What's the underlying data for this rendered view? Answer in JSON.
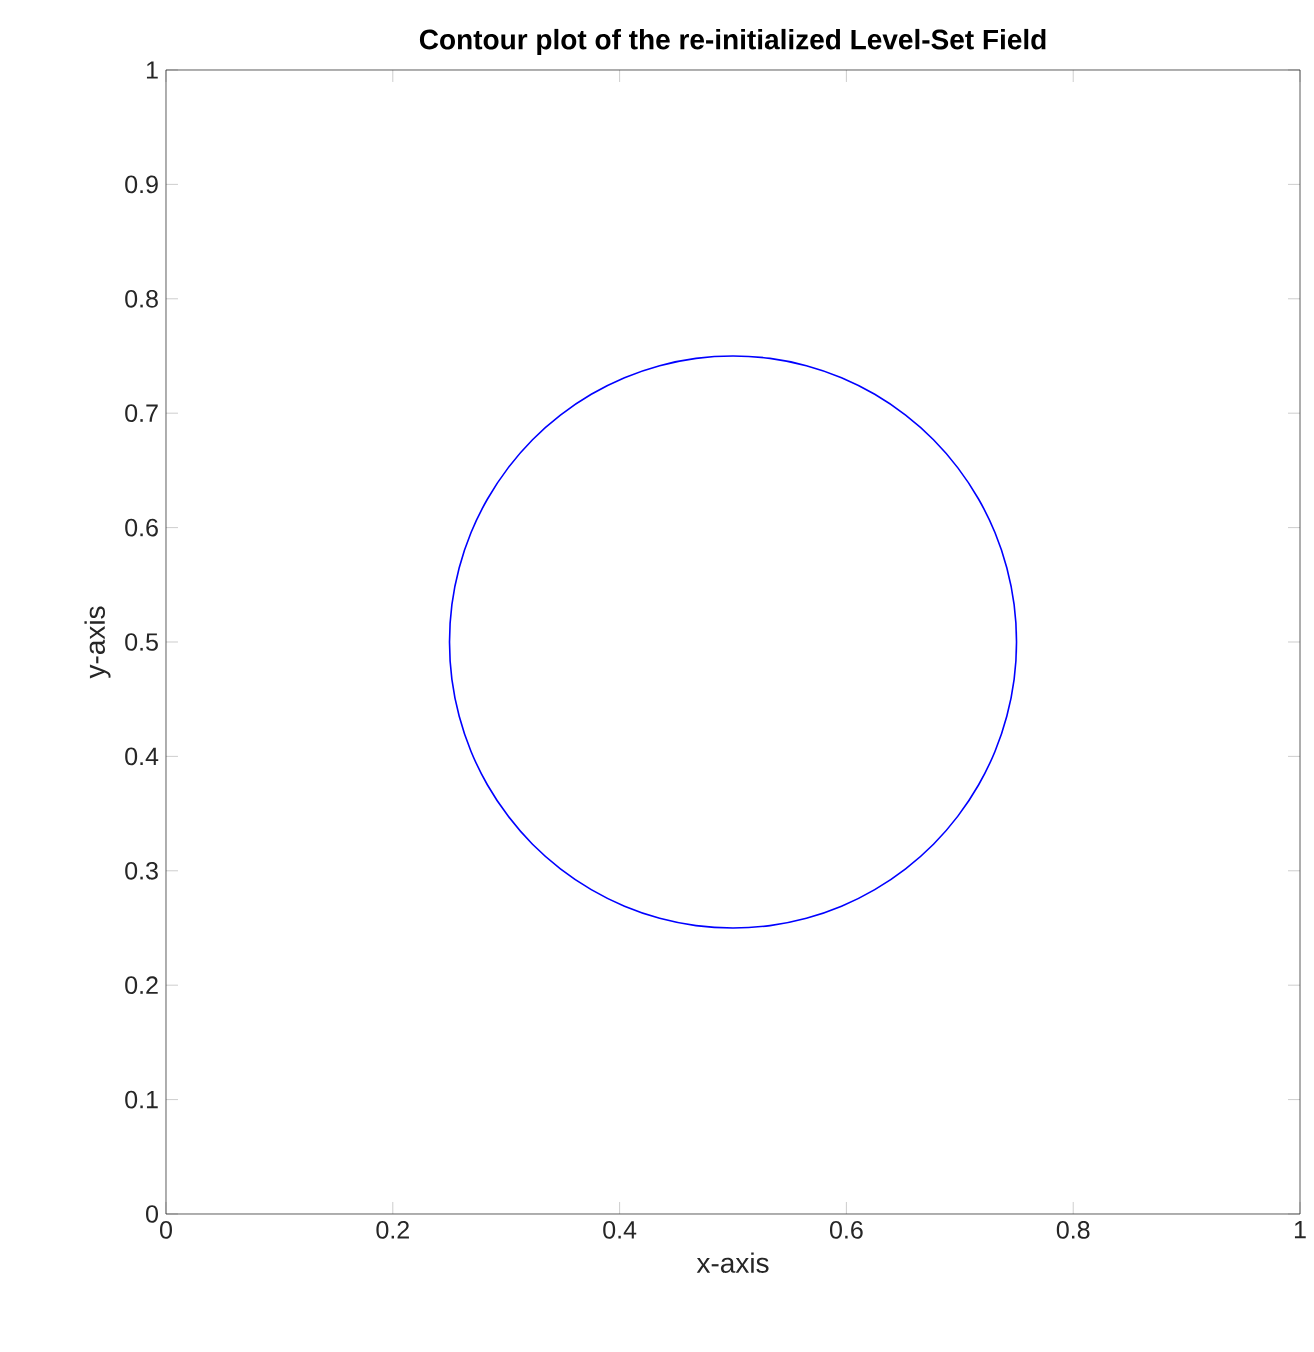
{
  "chart_data": {
    "type": "line",
    "title": "Contour plot of the re-initialized Level-Set Field",
    "xlabel": "x-axis",
    "ylabel": "y-axis",
    "xlim": [
      0,
      1
    ],
    "ylim": [
      0,
      1
    ],
    "xticks": [
      0,
      0.2,
      0.4,
      0.6,
      0.8,
      1
    ],
    "yticks": [
      0,
      0.1,
      0.2,
      0.3,
      0.4,
      0.5,
      0.6,
      0.7,
      0.8,
      0.9,
      1
    ]
  }
}
